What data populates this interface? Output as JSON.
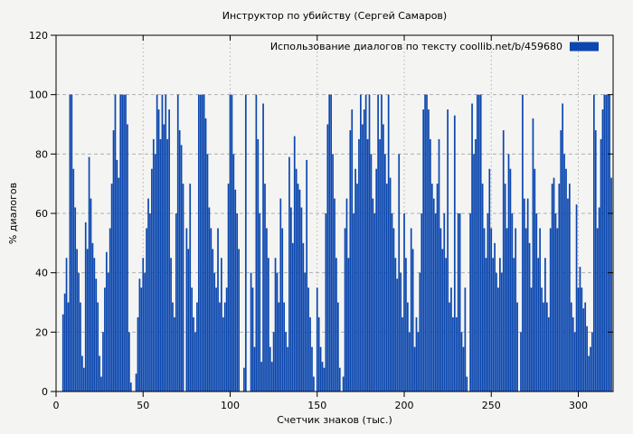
{
  "chart_data": {
    "type": "bar",
    "title": "Инструктор по убийству (Сергей Самаров)",
    "legend": "Использование диалогов по тексту  coollib.net/b/459680",
    "xlabel": "Счетчик знаков (тыс.)",
    "ylabel": "% диалогов",
    "xlim": [
      0,
      320
    ],
    "ylim": [
      0,
      120
    ],
    "x_ticks": [
      0,
      50,
      100,
      150,
      200,
      250,
      300
    ],
    "y_ticks": [
      0,
      20,
      40,
      60,
      80,
      100,
      120
    ],
    "grid": true,
    "legend_position": "top-right-inside",
    "bar_color": "#0b47ae",
    "grid_color": "#b0b0b0",
    "background_color": "#f4f4f2",
    "border_color": "#000000",
    "x_step": 1,
    "values": [
      0,
      0,
      0,
      0,
      26,
      33,
      45,
      30,
      100,
      100,
      75,
      62,
      48,
      40,
      30,
      12,
      8,
      57,
      48,
      79,
      65,
      50,
      45,
      38,
      30,
      12,
      5,
      20,
      35,
      47,
      40,
      55,
      70,
      88,
      100,
      78,
      72,
      100,
      100,
      100,
      100,
      90,
      20,
      3,
      0,
      0,
      6,
      25,
      38,
      35,
      45,
      40,
      55,
      65,
      60,
      75,
      85,
      80,
      100,
      95,
      85,
      100,
      90,
      100,
      85,
      95,
      45,
      30,
      25,
      60,
      100,
      88,
      83,
      70,
      0,
      55,
      48,
      70,
      35,
      25,
      20,
      30,
      100,
      100,
      100,
      100,
      92,
      80,
      62,
      55,
      48,
      40,
      35,
      55,
      30,
      45,
      25,
      30,
      35,
      70,
      100,
      100,
      80,
      68,
      60,
      48,
      0,
      0,
      8,
      100,
      0,
      0,
      40,
      35,
      15,
      100,
      85,
      60,
      10,
      97,
      70,
      55,
      45,
      15,
      10,
      20,
      45,
      40,
      30,
      65,
      55,
      30,
      20,
      15,
      79,
      62,
      50,
      86,
      75,
      70,
      68,
      62,
      50,
      40,
      78,
      35,
      25,
      15,
      5,
      0,
      35,
      25,
      15,
      10,
      8,
      60,
      90,
      100,
      100,
      80,
      65,
      45,
      30,
      8,
      0,
      5,
      55,
      65,
      45,
      88,
      95,
      60,
      75,
      70,
      85,
      100,
      90,
      95,
      100,
      85,
      100,
      80,
      65,
      60,
      75,
      100,
      85,
      100,
      90,
      80,
      70,
      100,
      72,
      60,
      55,
      45,
      38,
      80,
      40,
      25,
      60,
      45,
      30,
      20,
      55,
      48,
      15,
      25,
      20,
      40,
      60,
      95,
      100,
      100,
      95,
      85,
      70,
      65,
      60,
      70,
      85,
      55,
      48,
      60,
      45,
      95,
      30,
      35,
      25,
      93,
      25,
      60,
      60,
      20,
      15,
      35,
      5,
      0,
      60,
      97,
      80,
      85,
      100,
      100,
      100,
      70,
      55,
      45,
      60,
      75,
      55,
      45,
      50,
      40,
      35,
      45,
      40,
      88,
      70,
      55,
      80,
      75,
      60,
      45,
      55,
      30,
      0,
      20,
      100,
      65,
      55,
      65,
      50,
      35,
      92,
      75,
      60,
      45,
      55,
      35,
      30,
      45,
      30,
      25,
      55,
      70,
      72,
      60,
      55,
      70,
      88,
      97,
      80,
      75,
      65,
      70,
      30,
      25,
      20,
      63,
      35,
      42,
      35,
      28,
      30,
      22,
      12,
      15,
      20,
      100,
      88,
      55,
      62,
      85,
      95,
      100,
      100,
      100,
      100,
      72
    ]
  }
}
